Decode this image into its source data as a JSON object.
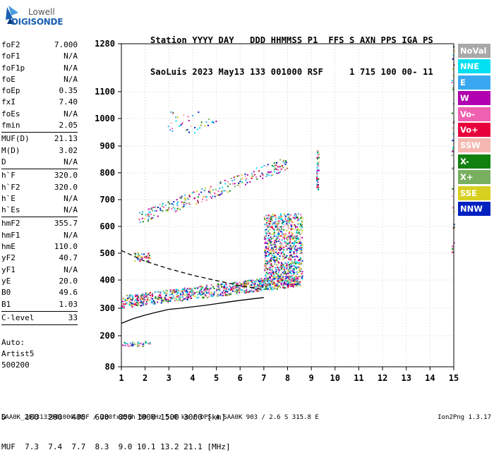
{
  "logo": {
    "line1": "Lowell",
    "line2": "DIGISONDE"
  },
  "header": {
    "line1": "Station YYYY DAY   DDD HHMMSS P1  FFS S AXN PPS IGA PS",
    "line2": "SaoLuis 2023 May13 133 001000 RSF     1 715 100 00- 11"
  },
  "params": [
    {
      "name": "foF2",
      "value": "7.000"
    },
    {
      "name": "foF1",
      "value": "N/A"
    },
    {
      "name": "foF1p",
      "value": "N/A"
    },
    {
      "name": "foE",
      "value": "N/A"
    },
    {
      "name": "foEp",
      "value": "0.35"
    },
    {
      "name": "fxI",
      "value": "7.40"
    },
    {
      "name": "foEs",
      "value": "N/A"
    },
    {
      "name": "fmin",
      "value": "2.05",
      "sep": true
    },
    {
      "name": "MUF(D)",
      "value": "21.13"
    },
    {
      "name": "M(D)",
      "value": "3.02"
    },
    {
      "name": "D",
      "value": "N/A",
      "sep": true
    },
    {
      "name": "h`F",
      "value": "320.0"
    },
    {
      "name": "h`F2",
      "value": "320.0"
    },
    {
      "name": "h`E",
      "value": "N/A"
    },
    {
      "name": "h`Es",
      "value": "N/A",
      "sep": true
    },
    {
      "name": "hmF2",
      "value": "355.7"
    },
    {
      "name": "hmF1",
      "value": "N/A"
    },
    {
      "name": "hmE",
      "value": "110.0"
    },
    {
      "name": "yF2",
      "value": "40.7"
    },
    {
      "name": "yF1",
      "value": "N/A"
    },
    {
      "name": "yE",
      "value": "20.0"
    },
    {
      "name": "B0",
      "value": "49.6"
    },
    {
      "name": "B1",
      "value": "1.03",
      "sep": true
    },
    {
      "name": "C-level",
      "value": "33",
      "sep": true
    }
  ],
  "auto": {
    "line1": "Auto:",
    "line2": "Artist5",
    "line3": "500200"
  },
  "legend": [
    {
      "label": "NoVal",
      "color": "#a8a8a8"
    },
    {
      "label": "NNE",
      "color": "#00e0f0"
    },
    {
      "label": "E",
      "color": "#3aa8f0"
    },
    {
      "label": "W",
      "color": "#b000b0"
    },
    {
      "label": "Vo-",
      "color": "#f060b0"
    },
    {
      "label": "Vo+",
      "color": "#e8003c"
    },
    {
      "label": "SSW",
      "color": "#f4b8b0"
    },
    {
      "label": "X-",
      "color": "#108010"
    },
    {
      "label": "X+",
      "color": "#78b060"
    },
    {
      "label": "SSE",
      "color": "#d8d020"
    },
    {
      "label": "NNW",
      "color": "#0020c0"
    }
  ],
  "dtable": {
    "row1": "D    100  200  400  600  800 1000 1500 3000 [km]",
    "row2": "MUF  7.3  7.4  7.7  8.3  9.0 10.1 13.2 21.1 [MHz]"
  },
  "footer": {
    "left": "SAA0K_2023133001000.RSF / 280fx256h 50 kHz 5.0 km / DPS-4 SAA0K 903 / 2.6 S 315.8 E",
    "right": "Ion2Png 1.3.17"
  },
  "chart_data": {
    "type": "scatter",
    "x_ticks": [
      1,
      2,
      3,
      4,
      5,
      6,
      7,
      8,
      9,
      10,
      11,
      12,
      13,
      14,
      15
    ],
    "y_ticks": [
      80,
      200,
      300,
      400,
      500,
      600,
      700,
      800,
      900,
      1000,
      1100,
      1280
    ],
    "xlim": [
      1,
      15
    ],
    "ylim": [
      80,
      1280
    ],
    "grid": true,
    "legend_position": "right",
    "traces": [
      {
        "name": "",
        "color": "#000000",
        "x": [
          1.0,
          1.5,
          2.0,
          2.5,
          3.0,
          3.5,
          4.0,
          4.5,
          5.0,
          5.5,
          6.0,
          6.5,
          7.0
        ],
        "y": [
          245,
          262,
          275,
          286,
          296,
          300,
          305,
          310,
          316,
          322,
          328,
          333,
          338
        ]
      },
      {
        "name": "",
        "color": "#000000",
        "dashed": true,
        "x": [
          1.0,
          2.0,
          3.0,
          4.0,
          5.0,
          6.0,
          7.0
        ],
        "y": [
          510,
          470,
          442,
          418,
          398,
          380,
          365
        ]
      }
    ],
    "echo_bands": [
      {
        "x_from": 1.0,
        "x_to": 8.4,
        "y_from": 325,
        "y_to": 420,
        "density": "high"
      },
      {
        "x_from": 7.0,
        "x_to": 8.6,
        "y_from": 380,
        "y_to": 650,
        "density": "high"
      },
      {
        "x_from": 1.7,
        "x_to": 8.0,
        "y_from": 630,
        "y_to": 840,
        "density": "medium"
      },
      {
        "x_from": 2.8,
        "x_to": 5.0,
        "y_from": 950,
        "y_to": 1030,
        "density": "low"
      },
      {
        "x_from": 1.5,
        "x_to": 2.2,
        "y_from": 470,
        "y_to": 505,
        "density": "low"
      },
      {
        "x_from": 1.0,
        "x_to": 2.2,
        "y_from": 160,
        "y_to": 180,
        "density": "low"
      },
      {
        "x_from": 9.2,
        "x_to": 9.3,
        "y_from": 740,
        "y_to": 900,
        "density": "low"
      },
      {
        "x_from": 14.9,
        "x_to": 15.0,
        "y_from": 480,
        "y_to": 1280,
        "density": "low"
      }
    ]
  }
}
